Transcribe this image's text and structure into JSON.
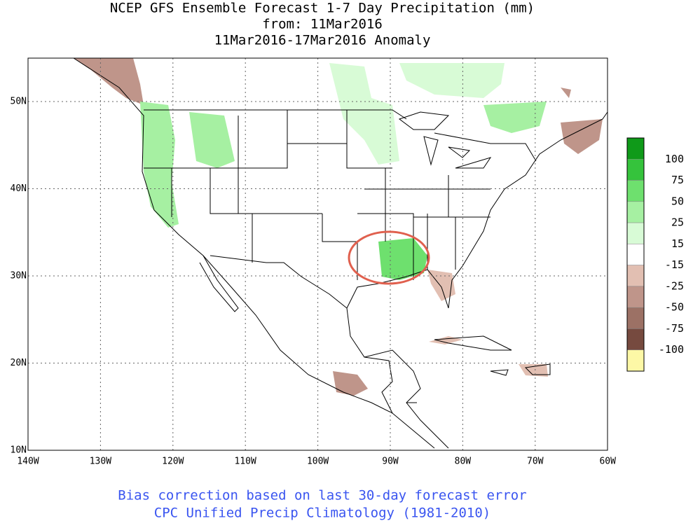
{
  "title": {
    "lines": [
      "NCEP GFS Ensemble Forecast 1-7 Day Precipitation (mm)",
      "from: 11Mar2016",
      "11Mar2016-17Mar2016 Anomaly"
    ]
  },
  "map": {
    "lon_labels": [
      "140W",
      "130W",
      "120W",
      "110W",
      "100W",
      "90W",
      "80W",
      "70W",
      "60W"
    ],
    "lat_labels": [
      "10N",
      "20N",
      "30N",
      "40N",
      "50N"
    ]
  },
  "legend": {
    "colors": [
      "#0f9a19",
      "#35c33c",
      "#6ee06e",
      "#a6f0a2",
      "#d8fbd6",
      "#ffffff",
      "#e2bfb2",
      "#bf958a",
      "#9c7165",
      "#764a3f",
      "#fdf8a6"
    ],
    "labels": [
      "100",
      "75",
      "50",
      "25",
      "15",
      "-15",
      "-25",
      "-50",
      "-75",
      "-100"
    ]
  },
  "footer": {
    "lines": [
      "Bias correction based on last 30-day forecast error",
      "CPC Unified Precip Climatology (1981-2010)"
    ]
  }
}
